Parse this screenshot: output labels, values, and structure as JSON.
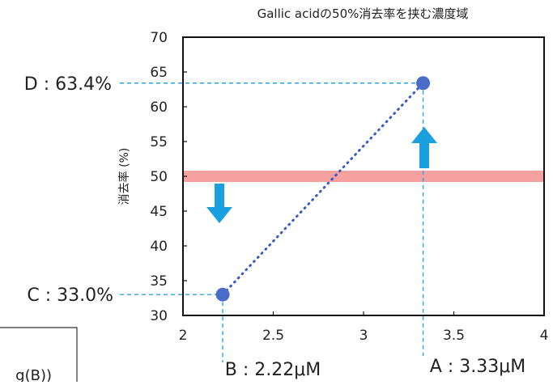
{
  "chart_data": {
    "type": "scatter",
    "title": "Gallic acidの50%消去率を挟む濃度域",
    "xlabel": "",
    "ylabel": "消去率 (%)",
    "xlim": [
      2,
      4
    ],
    "ylim": [
      30,
      70
    ],
    "x_ticks": [
      "2",
      "2.5",
      "3",
      "3.5",
      "4"
    ],
    "y_ticks": [
      "30",
      "35",
      "40",
      "45",
      "50",
      "55",
      "60",
      "65",
      "70"
    ],
    "grid": false,
    "series": [
      {
        "points": [
          {
            "x": 2.22,
            "y": 33.0
          },
          {
            "x": 3.33,
            "y": 63.4
          }
        ]
      }
    ],
    "reference_line": {
      "y": 50
    },
    "annotations": {
      "point_c": "C : 33.0%",
      "point_d": "D : 63.4%",
      "point_b": "B : 2.22μM",
      "point_a": "A : 3.33μM"
    },
    "partial_text": "g(B))",
    "colors": {
      "points": "#4a6cc9",
      "trend_line": "#3b5bc0",
      "guide_lines": "#29a3e0",
      "reference_band": "#f6a0a0",
      "arrows": "#1a9fe0",
      "axes": "#111111"
    }
  }
}
